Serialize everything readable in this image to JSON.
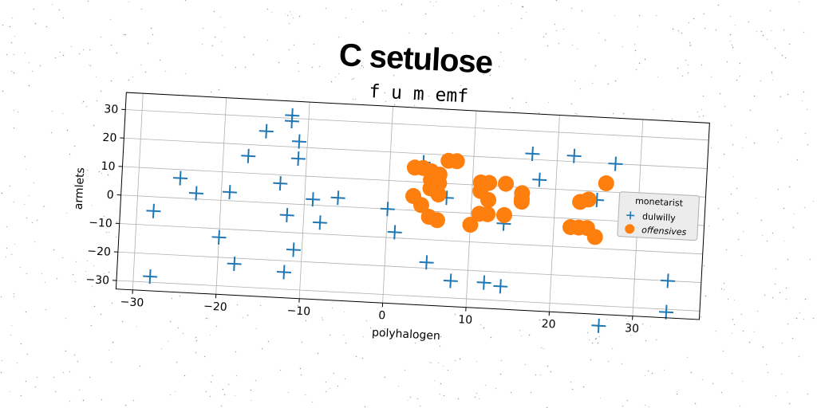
{
  "suptitle": "C setulose",
  "chart_data": {
    "type": "scatter",
    "title": "f u m emf",
    "xlabel": "polyhalogen",
    "ylabel": "armlets",
    "xlim": [
      -32,
      38
    ],
    "ylim": [
      -33,
      36
    ],
    "xticks": [
      -30,
      -20,
      -10,
      0,
      10,
      20,
      30
    ],
    "yticks": [
      -30,
      -20,
      -10,
      0,
      10,
      20,
      30
    ],
    "xtick_labels": [
      "−30",
      "−20",
      "−10",
      "0",
      "10",
      "20",
      "30"
    ],
    "ytick_labels": [
      "−30",
      "−20",
      "−10",
      "0",
      "10",
      "20",
      "30"
    ],
    "grid": true,
    "legend": {
      "title": "monetarist",
      "placement": "right"
    },
    "series": [
      {
        "name": "dulwilly",
        "marker": "plus",
        "color": "#1f77b4",
        "points": [
          [
            -12,
            31
          ],
          [
            -12,
            29
          ],
          [
            -15,
            25
          ],
          [
            -11,
            22
          ],
          [
            -17,
            16
          ],
          [
            -11,
            16
          ],
          [
            -25,
            7
          ],
          [
            -13,
            7
          ],
          [
            -23,
            2
          ],
          [
            -19,
            3
          ],
          [
            -9,
            2
          ],
          [
            -6,
            3
          ],
          [
            -28,
            -5
          ],
          [
            -12,
            -4
          ],
          [
            -8,
            -6
          ],
          [
            -20,
            -13
          ],
          [
            -11,
            -16
          ],
          [
            -18,
            -22
          ],
          [
            -12,
            -24
          ],
          [
            -28,
            -28
          ],
          [
            0,
            0
          ],
          [
            1,
            -8
          ],
          [
            5,
            -18
          ],
          [
            8,
            -24
          ],
          [
            12,
            -24
          ],
          [
            14,
            -25
          ],
          [
            4,
            17
          ],
          [
            7,
            5
          ],
          [
            14,
            -3
          ],
          [
            17,
            22
          ],
          [
            22,
            22
          ],
          [
            27,
            20
          ],
          [
            18,
            13
          ],
          [
            25,
            7
          ],
          [
            35,
            0
          ],
          [
            36,
            1
          ],
          [
            34,
            -20
          ],
          [
            34,
            -31
          ],
          [
            26,
            -37
          ]
        ]
      },
      {
        "name": "offensives",
        "marker": "circle",
        "color": "#ff7f0e",
        "points": [
          [
            3,
            15
          ],
          [
            4,
            15
          ],
          [
            5,
            14
          ],
          [
            6,
            13
          ],
          [
            5,
            11
          ],
          [
            6,
            10
          ],
          [
            5,
            8
          ],
          [
            6,
            6
          ],
          [
            3,
            5
          ],
          [
            4,
            2
          ],
          [
            5,
            -2
          ],
          [
            6,
            -3
          ],
          [
            7,
            18
          ],
          [
            8,
            18
          ],
          [
            11,
            11
          ],
          [
            12,
            11
          ],
          [
            14,
            11
          ],
          [
            11,
            8
          ],
          [
            16,
            8
          ],
          [
            16,
            6
          ],
          [
            12,
            5
          ],
          [
            16,
            5
          ],
          [
            11,
            0
          ],
          [
            12,
            0
          ],
          [
            14,
            0
          ],
          [
            10,
            -4
          ],
          [
            23,
            6
          ],
          [
            24,
            7
          ],
          [
            22,
            -3
          ],
          [
            23,
            -3
          ],
          [
            24,
            -3
          ],
          [
            25,
            -6
          ],
          [
            26,
            13
          ]
        ]
      }
    ]
  }
}
